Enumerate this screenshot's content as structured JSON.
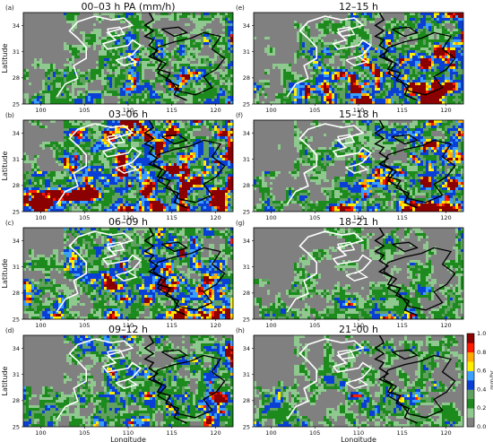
{
  "figure": {
    "unit": "mm/hr",
    "xlabel": "Longitude",
    "ylabel": "Latitude"
  },
  "chart_data": [
    {
      "type": "heatmap",
      "label": "(a)",
      "title": "00–03 h PA (mm/h)",
      "xlabel": "",
      "ylabel": "Latitude",
      "xticks": [
        "100",
        "105",
        "110",
        "115",
        "120"
      ],
      "yticks": [
        "25",
        "28",
        "31",
        "34"
      ],
      "xlim": [
        98,
        122
      ],
      "ylim": [
        25,
        35.5
      ],
      "intensity": 0.35,
      "east_bias": 0.3,
      "south_bias": 0.25
    },
    {
      "type": "heatmap",
      "label": "(b)",
      "title": "03–06 h",
      "xlabel": "",
      "ylabel": "Latitude",
      "xticks": [
        "100",
        "105",
        "110",
        "115",
        "120"
      ],
      "yticks": [
        "25",
        "28",
        "31",
        "34"
      ],
      "xlim": [
        98,
        122
      ],
      "ylim": [
        25,
        35.5
      ],
      "intensity": 0.65,
      "east_bias": 0.1,
      "south_bias": 0.2
    },
    {
      "type": "heatmap",
      "label": "(c)",
      "title": "06–09 h",
      "xlabel": "",
      "ylabel": "Latitude",
      "xticks": [
        "100",
        "105",
        "110",
        "115",
        "120"
      ],
      "yticks": [
        "25",
        "28",
        "31",
        "34"
      ],
      "xlim": [
        98,
        122
      ],
      "ylim": [
        25,
        35.5
      ],
      "intensity": 0.5,
      "east_bias": 0.15,
      "south_bias": 0.15
    },
    {
      "type": "heatmap",
      "label": "(d)",
      "title": "09–12 h",
      "xlabel": "Longitude",
      "ylabel": "Latitude",
      "xticks": [
        "100",
        "105",
        "110",
        "115",
        "120"
      ],
      "yticks": [
        "25",
        "28",
        "31",
        "34"
      ],
      "xlim": [
        98,
        122
      ],
      "ylim": [
        25,
        35.5
      ],
      "intensity": 0.38,
      "east_bias": 0.25,
      "south_bias": 0.2
    },
    {
      "type": "heatmap",
      "label": "(e)",
      "title": "12–15 h",
      "xlabel": "",
      "ylabel": "",
      "xticks": [
        "100",
        "105",
        "110",
        "115",
        "120"
      ],
      "yticks": [
        "25",
        "28",
        "31",
        "34"
      ],
      "xlim": [
        98,
        122
      ],
      "ylim": [
        25,
        35.5
      ],
      "intensity": 0.45,
      "east_bias": 0.45,
      "south_bias": 0.3
    },
    {
      "type": "heatmap",
      "label": "(f)",
      "title": "15–18 h",
      "xlabel": "",
      "ylabel": "",
      "xticks": [
        "100",
        "105",
        "110",
        "115",
        "120"
      ],
      "yticks": [
        "25",
        "28",
        "31",
        "34"
      ],
      "xlim": [
        98,
        122
      ],
      "ylim": [
        25,
        35.5
      ],
      "intensity": 0.4,
      "east_bias": 0.5,
      "south_bias": 0.35
    },
    {
      "type": "heatmap",
      "label": "(g)",
      "title": "18–21 h",
      "xlabel": "",
      "ylabel": "",
      "xticks": [
        "100",
        "105",
        "110",
        "115",
        "120"
      ],
      "yticks": [
        "25",
        "28",
        "31",
        "34"
      ],
      "xlim": [
        98,
        122
      ],
      "ylim": [
        25,
        35.5
      ],
      "intensity": 0.18,
      "east_bias": 0.2,
      "south_bias": 0.3
    },
    {
      "type": "heatmap",
      "label": "(h)",
      "title": "21–00 h",
      "xlabel": "Longitude",
      "ylabel": "",
      "xticks": [
        "100",
        "105",
        "110",
        "115",
        "120"
      ],
      "yticks": [
        "25",
        "28",
        "31",
        "34"
      ],
      "xlim": [
        98,
        122
      ],
      "ylim": [
        25,
        35.5
      ],
      "intensity": 0.22,
      "east_bias": 0.05,
      "south_bias": 0.3
    }
  ],
  "colorbar": {
    "label": "mm/hr",
    "ticks": [
      "0.0",
      "0.2",
      "0.4",
      "0.6",
      "0.8",
      "1.0"
    ],
    "colors": [
      "#808080",
      "#1c8a1c",
      "#0a3fd6",
      "#ffee00",
      "#ff1a00",
      "#8b0000"
    ],
    "levels": [
      "#808080",
      "#8fc98f",
      "#1c8a1c",
      "#60a060",
      "#0a3fd6",
      "#3aa0ff",
      "#ffee00",
      "#ffaa00",
      "#ff1a00",
      "#8b0000"
    ]
  }
}
